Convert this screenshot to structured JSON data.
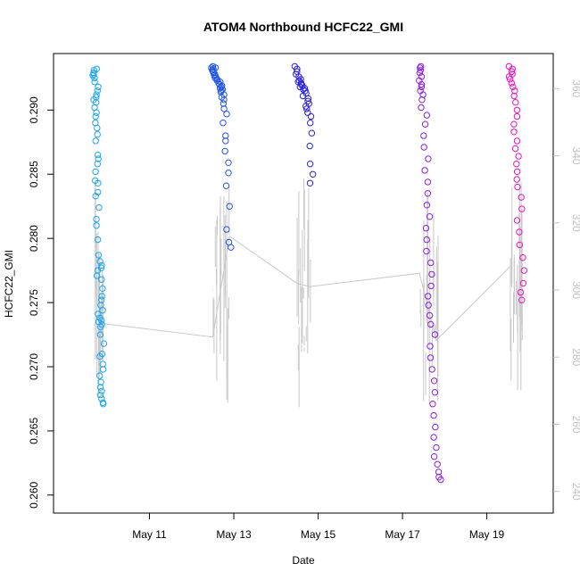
{
  "chart_data": {
    "type": "scatter",
    "title": "ATOM4 Northbound HCFC22_GMI",
    "xlabel": "Date",
    "ylabel": "HCFC22_GMI",
    "x_ticks": [
      "May 11",
      "May 13",
      "May 15",
      "May 17",
      "May 19"
    ],
    "x_tick_days": [
      11,
      13,
      15,
      17,
      19
    ],
    "xlim_days": [
      9.0,
      20.3
    ],
    "ylim": [
      0.2595,
      0.2935
    ],
    "y_ticks": [
      "0.260",
      "0.265",
      "0.270",
      "0.275",
      "0.280",
      "0.285",
      "0.290"
    ],
    "y_tick_values": [
      0.26,
      0.265,
      0.27,
      0.275,
      0.28,
      0.285,
      0.29
    ],
    "y2lim": [
      237,
      367
    ],
    "y2_ticks": [
      "240",
      "260",
      "280",
      "300",
      "320",
      "340",
      "360"
    ],
    "y2_tick_values": [
      240,
      260,
      280,
      300,
      320,
      340,
      360
    ],
    "line_color": "#c8c8c8",
    "series": [
      {
        "color": "#1aa6f0",
        "day_range": [
          9.7,
          9.9
        ],
        "values": [
          0.2932,
          0.2931,
          0.2929,
          0.2928,
          0.2927,
          0.2925,
          0.2922,
          0.2918,
          0.2915,
          0.2912,
          0.291,
          0.2908,
          0.2906,
          0.2902,
          0.2898,
          0.2895,
          0.289,
          0.2886,
          0.2881,
          0.2876,
          0.2865,
          0.2862,
          0.2858,
          0.2852,
          0.2845,
          0.2843,
          0.2836,
          0.2833,
          0.2824,
          0.2815,
          0.281,
          0.2799,
          0.2787,
          0.2782,
          0.2779,
          0.2777,
          0.2775,
          0.2771,
          0.2768,
          0.2761,
          0.2755,
          0.2752,
          0.2748,
          0.2744,
          0.2741,
          0.2738,
          0.2736,
          0.2735,
          0.2733,
          0.2731,
          0.2725,
          0.2718,
          0.271,
          0.2708,
          0.2702,
          0.2698,
          0.2693,
          0.2688,
          0.2684,
          0.2681,
          0.2678,
          0.2675,
          0.2672,
          0.2671
        ]
      },
      {
        "color": "#1f55e8",
        "day_range": [
          12.5,
          12.9
        ],
        "values": [
          0.2934,
          0.2933,
          0.2933,
          0.2932,
          0.2931,
          0.293,
          0.2929,
          0.2928,
          0.2927,
          0.2926,
          0.2925,
          0.2924,
          0.2923,
          0.2922,
          0.2921,
          0.292,
          0.2919,
          0.2918,
          0.2917,
          0.2916,
          0.2915,
          0.2914,
          0.2912,
          0.291,
          0.2908,
          0.2905,
          0.2901,
          0.2897,
          0.289,
          0.288,
          0.2876,
          0.2868,
          0.2859,
          0.2851,
          0.2841,
          0.2825,
          0.2807,
          0.2797,
          0.2793
        ]
      },
      {
        "color": "#2a22e0",
        "day_range": [
          14.5,
          14.85
        ],
        "values": [
          0.2934,
          0.2932,
          0.293,
          0.2928,
          0.2926,
          0.2924,
          0.2923,
          0.2922,
          0.2921,
          0.292,
          0.2919,
          0.2918,
          0.2917,
          0.2916,
          0.2915,
          0.2913,
          0.2911,
          0.2909,
          0.2907,
          0.2905,
          0.2903,
          0.2901,
          0.2898,
          0.2895,
          0.289,
          0.2882,
          0.2872,
          0.2858,
          0.285,
          0.2843
        ]
      },
      {
        "color": "#8a1ee8",
        "day_range": [
          17.4,
          17.85
        ],
        "values": [
          0.2934,
          0.2933,
          0.2931,
          0.2929,
          0.2926,
          0.2923,
          0.292,
          0.2918,
          0.2915,
          0.2912,
          0.2908,
          0.2902,
          0.2896,
          0.2889,
          0.288,
          0.2871,
          0.2862,
          0.2853,
          0.2844,
          0.2835,
          0.2826,
          0.2817,
          0.2808,
          0.2799,
          0.279,
          0.2781,
          0.2772,
          0.2763,
          0.2755,
          0.2748,
          0.274,
          0.2733,
          0.2725,
          0.2716,
          0.2707,
          0.2698,
          0.2689,
          0.268,
          0.2671,
          0.2662,
          0.2653,
          0.2645,
          0.2637,
          0.263,
          0.2624,
          0.2618,
          0.2614,
          0.2612
        ]
      },
      {
        "color": "#ee10c0",
        "day_range": [
          19.55,
          19.85
        ],
        "values": [
          0.2934,
          0.2932,
          0.293,
          0.2928,
          0.2926,
          0.2924,
          0.2921,
          0.2918,
          0.2915,
          0.2911,
          0.2906,
          0.29,
          0.2895,
          0.2889,
          0.2883,
          0.2876,
          0.287,
          0.2864,
          0.2858,
          0.2852,
          0.2846,
          0.284,
          0.2832,
          0.2823,
          0.2814,
          0.2805,
          0.2795,
          0.2785,
          0.2775,
          0.2765,
          0.2758,
          0.2752
        ]
      }
    ],
    "line": {
      "days": [
        9.9,
        12.5,
        12.9,
        14.5,
        14.8,
        17.4,
        17.8,
        19.55
      ],
      "values": [
        290,
        286,
        316,
        302,
        301,
        305,
        285,
        307
      ]
    }
  }
}
